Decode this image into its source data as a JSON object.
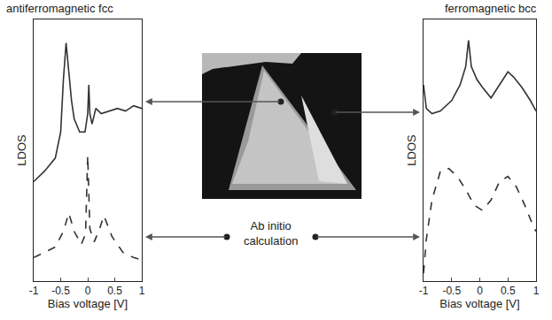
{
  "chart_data": [
    {
      "type": "line",
      "title": "antiferromagnetic fcc",
      "x_label": "Bias voltage [V]",
      "y_label": "LDOS",
      "xlim": [
        -1,
        1
      ],
      "xticks": [
        -1,
        -0.5,
        0,
        0.5,
        1
      ],
      "ylim": [
        0,
        1
      ],
      "yticks": [],
      "tick_labels": "x",
      "grid": false,
      "series": [
        {
          "color": "#333333",
          "line_style": "solid",
          "x": [
            -1,
            -0.8,
            -0.6,
            -0.5,
            -0.45,
            -0.4,
            -0.35,
            -0.3,
            -0.25,
            -0.15,
            -0.05,
            0,
            0.02,
            0.04,
            0.08,
            0.15,
            0.25,
            0.4,
            0.55,
            0.7,
            0.85,
            1
          ],
          "values": [
            0.38,
            0.42,
            0.47,
            0.57,
            0.77,
            0.91,
            0.8,
            0.69,
            0.62,
            0.57,
            0.57,
            0.64,
            0.75,
            0.64,
            0.6,
            0.66,
            0.64,
            0.65,
            0.66,
            0.65,
            0.67,
            0.66
          ]
        },
        {
          "color": "#333333",
          "line_style": "dashed",
          "x": [
            -1,
            -0.8,
            -0.6,
            -0.45,
            -0.35,
            -0.25,
            -0.12,
            -0.04,
            0,
            0.04,
            0.12,
            0.22,
            0.3,
            0.45,
            0.65,
            0.85,
            1
          ],
          "values": [
            0.09,
            0.11,
            0.13,
            0.19,
            0.26,
            0.19,
            0.14,
            0.18,
            0.48,
            0.2,
            0.15,
            0.2,
            0.25,
            0.17,
            0.11,
            0.09,
            0.08
          ]
        }
      ]
    },
    {
      "type": "line",
      "title": "ferromagnetic bcc",
      "x_label": "Bias voltage [V]",
      "y_label": "LDOS",
      "xlim": [
        -1,
        1
      ],
      "xticks": [
        -1,
        -0.5,
        0,
        0.5,
        1
      ],
      "ylim": [
        0,
        1
      ],
      "yticks": [],
      "tick_labels": "x",
      "grid": false,
      "series": [
        {
          "color": "#333333",
          "line_style": "solid",
          "x": [
            -1,
            -0.95,
            -0.85,
            -0.7,
            -0.5,
            -0.35,
            -0.25,
            -0.2,
            -0.15,
            -0.05,
            0.05,
            0.2,
            0.35,
            0.5,
            0.6,
            0.75,
            0.9,
            1
          ],
          "values": [
            0.75,
            0.66,
            0.64,
            0.65,
            0.69,
            0.75,
            0.82,
            0.92,
            0.82,
            0.77,
            0.74,
            0.7,
            0.75,
            0.8,
            0.78,
            0.74,
            0.69,
            0.65
          ]
        },
        {
          "color": "#333333",
          "line_style": "dashed",
          "x": [
            -1,
            -0.95,
            -0.85,
            -0.7,
            -0.55,
            -0.4,
            -0.25,
            -0.1,
            0.05,
            0.2,
            0.35,
            0.5,
            0.65,
            0.8,
            0.95,
            1
          ],
          "values": [
            0.03,
            0.16,
            0.31,
            0.42,
            0.43,
            0.4,
            0.35,
            0.29,
            0.27,
            0.31,
            0.38,
            0.4,
            0.36,
            0.29,
            0.21,
            0.19
          ]
        }
      ]
    }
  ],
  "annotation": "Ab initio calculation"
}
